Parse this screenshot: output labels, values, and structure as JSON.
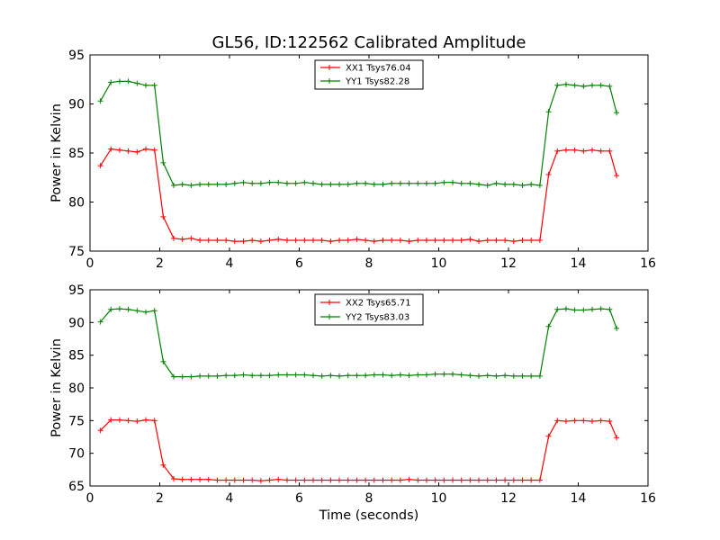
{
  "figure": {
    "title": "GL56, ID:122562 Calibrated Amplitude"
  },
  "chart_data": [
    {
      "type": "line",
      "title": "GL56, ID:122562 Calibrated Amplitude",
      "xlabel": "",
      "ylabel": "Power in Kelvin",
      "xlim": [
        0,
        16
      ],
      "ylim": [
        75,
        95
      ],
      "xticks": [
        0,
        2,
        4,
        6,
        8,
        10,
        12,
        14,
        16
      ],
      "yticks": [
        75,
        80,
        85,
        90,
        95
      ],
      "grid": false,
      "legend": "top-center",
      "x": [
        0.3,
        0.6,
        0.85,
        1.1,
        1.35,
        1.6,
        1.85,
        2.1,
        2.4,
        2.65,
        2.9,
        3.15,
        3.4,
        3.65,
        3.9,
        4.15,
        4.4,
        4.65,
        4.9,
        5.15,
        5.4,
        5.65,
        5.9,
        6.15,
        6.4,
        6.65,
        6.9,
        7.15,
        7.4,
        7.65,
        7.9,
        8.15,
        8.4,
        8.65,
        8.9,
        9.15,
        9.4,
        9.65,
        9.9,
        10.15,
        10.4,
        10.65,
        10.9,
        11.15,
        11.4,
        11.65,
        11.9,
        12.15,
        12.4,
        12.65,
        12.9,
        13.15,
        13.4,
        13.65,
        13.9,
        14.15,
        14.4,
        14.65,
        14.9,
        15.1
      ],
      "series": [
        {
          "name": "XX1 Tsys76.04",
          "color": "#ff0000",
          "values": [
            83.7,
            85.4,
            85.3,
            85.2,
            85.1,
            85.4,
            85.3,
            78.5,
            76.3,
            76.2,
            76.3,
            76.1,
            76.1,
            76.1,
            76.1,
            76.0,
            76.0,
            76.1,
            76.0,
            76.1,
            76.2,
            76.1,
            76.1,
            76.1,
            76.1,
            76.1,
            76.0,
            76.1,
            76.1,
            76.2,
            76.1,
            76.0,
            76.1,
            76.1,
            76.1,
            76.0,
            76.1,
            76.1,
            76.1,
            76.1,
            76.1,
            76.1,
            76.2,
            76.0,
            76.1,
            76.1,
            76.1,
            76.0,
            76.1,
            76.1,
            76.1,
            82.8,
            85.2,
            85.3,
            85.3,
            85.2,
            85.3,
            85.2,
            85.2,
            82.7
          ]
        },
        {
          "name": "YY1 Tsys82.28",
          "color": "#008000",
          "values": [
            90.3,
            92.2,
            92.3,
            92.3,
            92.1,
            91.9,
            91.9,
            84.0,
            81.7,
            81.8,
            81.7,
            81.8,
            81.8,
            81.8,
            81.8,
            81.9,
            82.0,
            81.9,
            81.9,
            82.0,
            82.0,
            81.9,
            81.9,
            82.0,
            81.9,
            81.8,
            81.8,
            81.8,
            81.8,
            81.9,
            81.9,
            81.8,
            81.8,
            81.9,
            81.9,
            81.9,
            81.9,
            81.9,
            81.9,
            82.0,
            82.0,
            81.9,
            81.9,
            81.8,
            81.7,
            81.9,
            81.8,
            81.8,
            81.7,
            81.8,
            81.7,
            89.2,
            91.9,
            92.0,
            91.9,
            91.8,
            91.9,
            91.9,
            91.8,
            89.1
          ]
        }
      ]
    },
    {
      "type": "line",
      "title": "",
      "xlabel": "Time (seconds)",
      "ylabel": "Power in Kelvin",
      "xlim": [
        0,
        16
      ],
      "ylim": [
        65,
        95
      ],
      "xticks": [
        0,
        2,
        4,
        6,
        8,
        10,
        12,
        14,
        16
      ],
      "yticks": [
        65,
        70,
        75,
        80,
        85,
        90,
        95
      ],
      "grid": false,
      "legend": "top-center",
      "x": [
        0.3,
        0.6,
        0.85,
        1.1,
        1.35,
        1.6,
        1.85,
        2.1,
        2.4,
        2.65,
        2.9,
        3.15,
        3.4,
        3.65,
        3.9,
        4.15,
        4.4,
        4.65,
        4.9,
        5.15,
        5.4,
        5.65,
        5.9,
        6.15,
        6.4,
        6.65,
        6.9,
        7.15,
        7.4,
        7.65,
        7.9,
        8.15,
        8.4,
        8.65,
        8.9,
        9.15,
        9.4,
        9.65,
        9.9,
        10.15,
        10.4,
        10.65,
        10.9,
        11.15,
        11.4,
        11.65,
        11.9,
        12.15,
        12.4,
        12.65,
        12.9,
        13.15,
        13.4,
        13.65,
        13.9,
        14.15,
        14.4,
        14.65,
        14.9,
        15.1
      ],
      "series": [
        {
          "name": "XX2 Tsys65.71",
          "color": "#ff0000",
          "values": [
            73.5,
            75.1,
            75.1,
            75.0,
            74.9,
            75.1,
            75.0,
            68.2,
            66.1,
            66.0,
            66.0,
            66.0,
            66.0,
            65.9,
            65.9,
            65.9,
            65.9,
            65.9,
            65.8,
            65.9,
            66.0,
            65.9,
            65.9,
            65.9,
            65.9,
            65.9,
            65.9,
            65.9,
            65.9,
            65.9,
            65.9,
            65.9,
            65.9,
            65.9,
            65.9,
            66.0,
            65.9,
            65.9,
            65.9,
            65.9,
            65.9,
            65.9,
            65.9,
            65.9,
            65.9,
            65.9,
            65.9,
            65.9,
            65.9,
            65.9,
            65.9,
            72.6,
            75.0,
            74.9,
            75.0,
            75.0,
            74.9,
            75.0,
            74.9,
            72.4
          ]
        },
        {
          "name": "YY2 Tsys83.03",
          "color": "#008000",
          "values": [
            90.1,
            92.0,
            92.1,
            92.0,
            91.8,
            91.6,
            91.8,
            84.0,
            81.7,
            81.7,
            81.7,
            81.8,
            81.8,
            81.8,
            81.9,
            81.9,
            82.0,
            81.9,
            81.9,
            81.9,
            82.0,
            82.0,
            82.0,
            82.0,
            81.9,
            81.8,
            81.9,
            81.8,
            81.9,
            81.9,
            81.9,
            82.0,
            82.0,
            81.9,
            82.0,
            81.9,
            82.0,
            82.0,
            82.1,
            82.1,
            82.1,
            82.0,
            81.9,
            81.8,
            81.9,
            81.8,
            81.9,
            81.8,
            81.8,
            81.8,
            81.8,
            89.4,
            92.0,
            92.1,
            91.9,
            91.9,
            92.0,
            92.1,
            92.0,
            89.1
          ]
        }
      ]
    }
  ]
}
